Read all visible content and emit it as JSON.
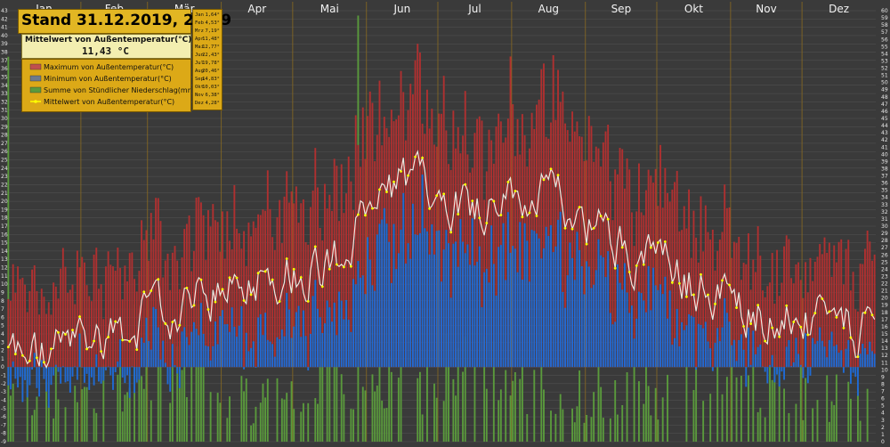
{
  "title": "Stand 31.12.2019, 23:59",
  "mean_box": {
    "label": "Mittelwert von Außentemperatur(°C)",
    "value": "11,43",
    "unit": "°C"
  },
  "legend": [
    {
      "label": "Maximum von Außentemperatur(°C)",
      "color": "#c0504d",
      "kind": "bar"
    },
    {
      "label": "Minimum von Außentemperatur(°C)",
      "color": "#6d7a8c",
      "kind": "bar"
    },
    {
      "label": "Summe von Stündlicher Niederschlag(mm)",
      "color": "#5a9a3c",
      "kind": "bar"
    },
    {
      "label": "Mittelwert von Außentemperatur(°C)",
      "color": "#ffff00",
      "kind": "line"
    }
  ],
  "monthly_means": [
    {
      "month": "Jan",
      "value": "1,64°"
    },
    {
      "month": "Feb",
      "value": "4,53°"
    },
    {
      "month": "Mrz",
      "value": "7,19°"
    },
    {
      "month": "Apr",
      "value": "11,48°"
    },
    {
      "month": "Mai",
      "value": "12,77°"
    },
    {
      "month": "Jun",
      "value": "22,43°"
    },
    {
      "month": "Jul",
      "value": "19,78°"
    },
    {
      "month": "Aug",
      "value": "20,46°"
    },
    {
      "month": "Sep",
      "value": "14,83°"
    },
    {
      "month": "Okt",
      "value": "10,03°"
    },
    {
      "month": "Nov",
      "value": "6,38°"
    },
    {
      "month": "Dez",
      "value": "4,28°"
    }
  ],
  "colors": {
    "background": "#3a3a3a",
    "grid": "#555555",
    "month_divider": "#8a6a20",
    "max_bar": "#b03030",
    "min_bar": "#1f6bd6",
    "precip_bar": "#5a9a3c",
    "mean_line": "#f0e8e0",
    "mean_dot": "#ffff00",
    "panel": "#dca917"
  },
  "chart_data": {
    "type": "bar",
    "months": [
      "Jan",
      "Feb",
      "Mär",
      "Apr",
      "Mai",
      "Jun",
      "Jul",
      "Aug",
      "Sep",
      "Okt",
      "Nov",
      "Dez"
    ],
    "days_per_month": [
      31,
      28,
      31,
      30,
      31,
      30,
      31,
      31,
      30,
      31,
      30,
      31
    ],
    "left_axis": {
      "min": -9,
      "max": 43,
      "step": 1
    },
    "right_axis": {
      "min": 0,
      "max": 60,
      "step": 1
    },
    "monthly_profile": {
      "mean": [
        1.64,
        4.53,
        7.19,
        11.48,
        12.77,
        22.43,
        19.78,
        20.46,
        14.83,
        10.03,
        6.38,
        4.28
      ],
      "max": [
        5.5,
        9.5,
        13.0,
        18.0,
        19.5,
        31.0,
        29.0,
        29.5,
        22.0,
        16.0,
        10.5,
        8.0
      ],
      "min": [
        -1.5,
        0.5,
        2.5,
        5.5,
        7.5,
        14.0,
        12.5,
        13.0,
        9.0,
        5.5,
        3.0,
        1.5
      ],
      "precip": [
        4.0,
        6.0,
        7.0,
        2.5,
        6.0,
        5.0,
        6.0,
        3.5,
        4.0,
        5.0,
        4.5,
        3.5
      ]
    },
    "grid": true,
    "legend_position": "top-left"
  }
}
